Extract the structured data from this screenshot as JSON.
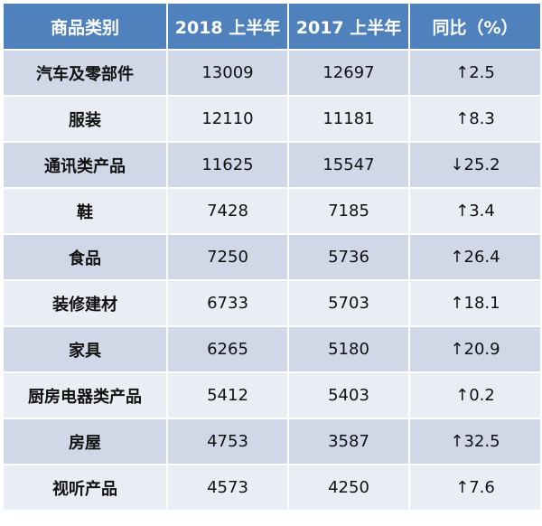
{
  "table": {
    "headers": [
      "商品类别",
      "2018 上半年",
      "2017 上半年",
      "同比（%）"
    ],
    "rows": [
      {
        "category": "汽车及零部件",
        "y2018": "13009",
        "y2017": "12697",
        "yoy": "↑2.5"
      },
      {
        "category": "服装",
        "y2018": "12110",
        "y2017": "11181",
        "yoy": "↑8.3"
      },
      {
        "category": "通讯类产品",
        "y2018": "11625",
        "y2017": "15547",
        "yoy": "↓25.2"
      },
      {
        "category": "鞋",
        "y2018": "7428",
        "y2017": "7185",
        "yoy": "↑3.4"
      },
      {
        "category": "食品",
        "y2018": "7250",
        "y2017": "5736",
        "yoy": "↑26.4"
      },
      {
        "category": "装修建材",
        "y2018": "6733",
        "y2017": "5703",
        "yoy": "↑18.1"
      },
      {
        "category": "家具",
        "y2018": "6265",
        "y2017": "5180",
        "yoy": "↑20.9"
      },
      {
        "category": "厨房电器类产品",
        "y2018": "5412",
        "y2017": "5403",
        "yoy": "↑0.2"
      },
      {
        "category": "房屋",
        "y2018": "4753",
        "y2017": "3587",
        "yoy": "↑32.5"
      },
      {
        "category": "视听产品",
        "y2018": "4573",
        "y2017": "4250",
        "yoy": "↑7.6"
      }
    ]
  },
  "colors": {
    "header_bg": "#4f81bd",
    "row_odd_bg": "#d0d8e8",
    "row_even_bg": "#e9edf4"
  }
}
